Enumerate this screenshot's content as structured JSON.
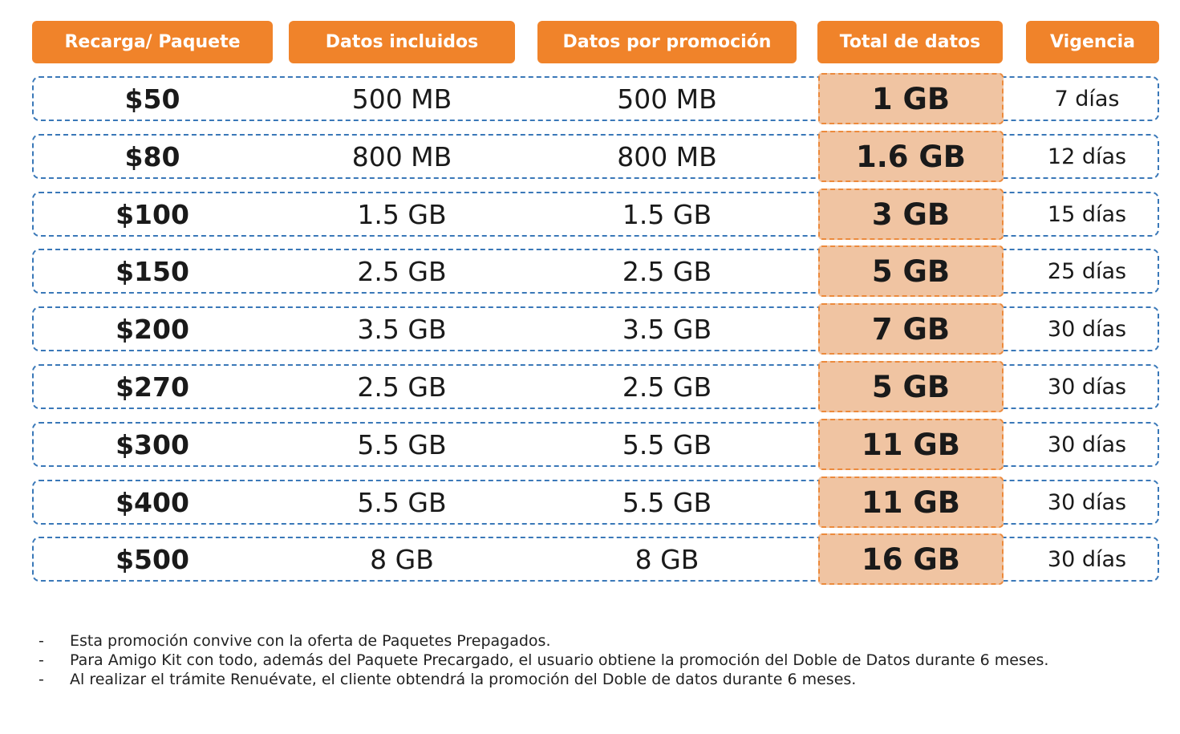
{
  "colors": {
    "header_bg": "#f0832a",
    "header_text": "#ffffff",
    "row_border": "#3a78b8",
    "total_bg": "#f0c4a2",
    "total_border": "#ec8a3c"
  },
  "headers": {
    "recarga": "Recarga/ Paquete",
    "incluidos": "Datos incluidos",
    "promocion": "Datos por promoción",
    "total": "Total de datos",
    "vigencia": "Vigencia"
  },
  "rows": [
    {
      "recarga": "$50",
      "incluidos": "500 MB",
      "promocion": "500 MB",
      "total": "1 GB",
      "vigencia": "7 días"
    },
    {
      "recarga": "$80",
      "incluidos": "800 MB",
      "promocion": "800 MB",
      "total": "1.6 GB",
      "vigencia": "12 días"
    },
    {
      "recarga": "$100",
      "incluidos": "1.5 GB",
      "promocion": "1.5 GB",
      "total": "3 GB",
      "vigencia": "15 días"
    },
    {
      "recarga": "$150",
      "incluidos": "2.5 GB",
      "promocion": "2.5 GB",
      "total": "5 GB",
      "vigencia": "25 días"
    },
    {
      "recarga": "$200",
      "incluidos": "3.5 GB",
      "promocion": "3.5 GB",
      "total": "7 GB",
      "vigencia": "30 días"
    },
    {
      "recarga": "$270",
      "incluidos": "2.5 GB",
      "promocion": "2.5 GB",
      "total": "5 GB",
      "vigencia": "30 días"
    },
    {
      "recarga": "$300",
      "incluidos": "5.5 GB",
      "promocion": "5.5 GB",
      "total": "11 GB",
      "vigencia": "30 días"
    },
    {
      "recarga": "$400",
      "incluidos": "5.5 GB",
      "promocion": "5.5 GB",
      "total": "11 GB",
      "vigencia": "30 días"
    },
    {
      "recarga": "$500",
      "incluidos": "8 GB",
      "promocion": "8 GB",
      "total": "16 GB",
      "vigencia": "30 días"
    }
  ],
  "notes": {
    "bullet": "-",
    "items": [
      "Esta promoción convive con la oferta de Paquetes Prepagados.",
      "Para Amigo Kit con todo, además del Paquete Precargado, el usuario obtiene la promoción del Doble de Datos durante 6 meses.",
      "Al realizar el trámite Renuévate, el cliente obtendrá la promoción del Doble de datos durante 6 meses."
    ]
  }
}
